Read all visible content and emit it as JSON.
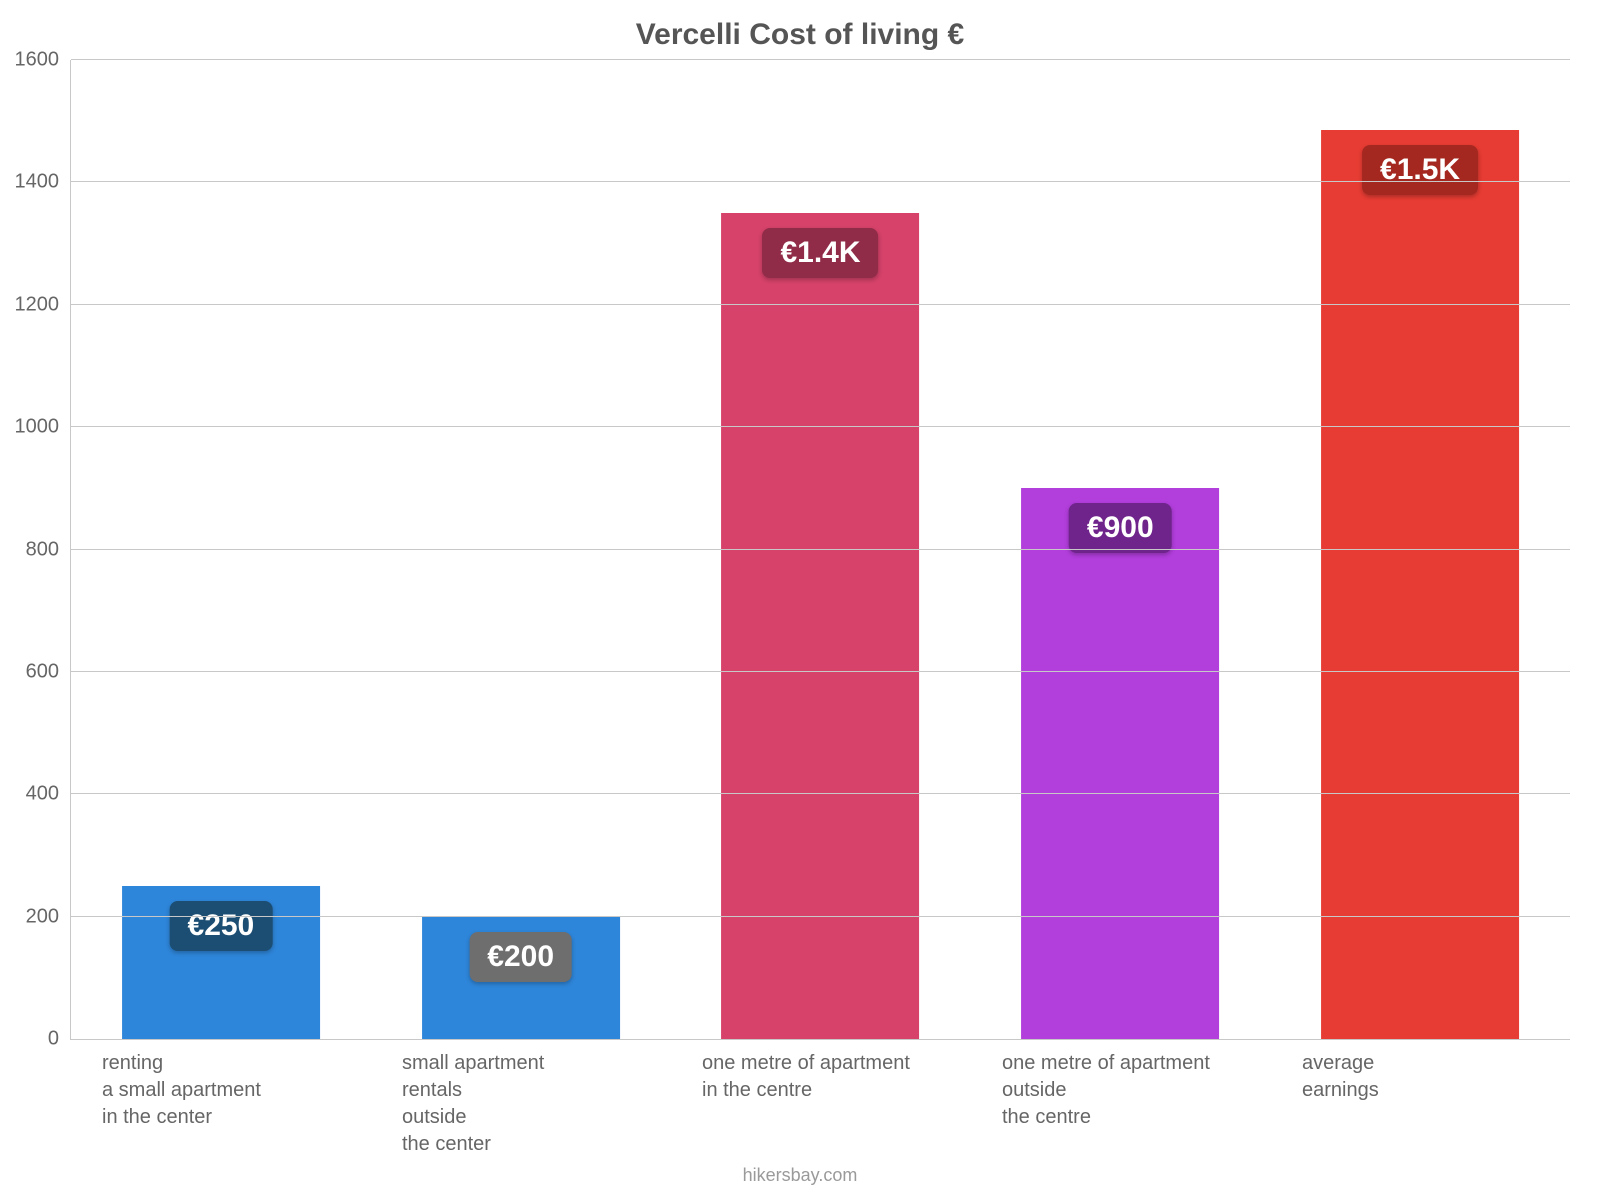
{
  "chart": {
    "type": "bar",
    "title": "Vercelli Cost of living €",
    "title_color": "#555555",
    "title_fontsize": 30,
    "background_color": "#ffffff",
    "axis_color": "#c8c8c8",
    "grid_color": "#c8c8c8",
    "tick_label_color": "#666666",
    "tick_fontsize": 20,
    "xlabel_color": "#666666",
    "xlabel_fontsize": 20,
    "ylim": [
      0,
      1600
    ],
    "ytick_step": 200,
    "yticks": [
      0,
      200,
      400,
      600,
      800,
      1000,
      1200,
      1400,
      1600
    ],
    "bar_width_pct": 66,
    "value_badge_fontsize": 30,
    "categories": [
      "renting\na small apartment\nin the center",
      "small apartment\nrentals\noutside\nthe center",
      "one metre of apartment\nin the centre",
      "one metre of apartment\noutside\nthe centre",
      "average\nearnings"
    ],
    "values": [
      250,
      200,
      1350,
      900,
      1485
    ],
    "value_labels": [
      "€250",
      "€200",
      "€1.4K",
      "€900",
      "€1.5K"
    ],
    "bar_colors": [
      "#2E86DA",
      "#2E86DA",
      "#D6426A",
      "#B23EDC",
      "#E73C33"
    ],
    "badge_bg_colors": [
      "#1C4E73",
      "#6E6E6E",
      "#902B48",
      "#6F248C",
      "#A52820"
    ],
    "attribution": "hikersbay.com",
    "attribution_color": "#9a9a9a"
  }
}
